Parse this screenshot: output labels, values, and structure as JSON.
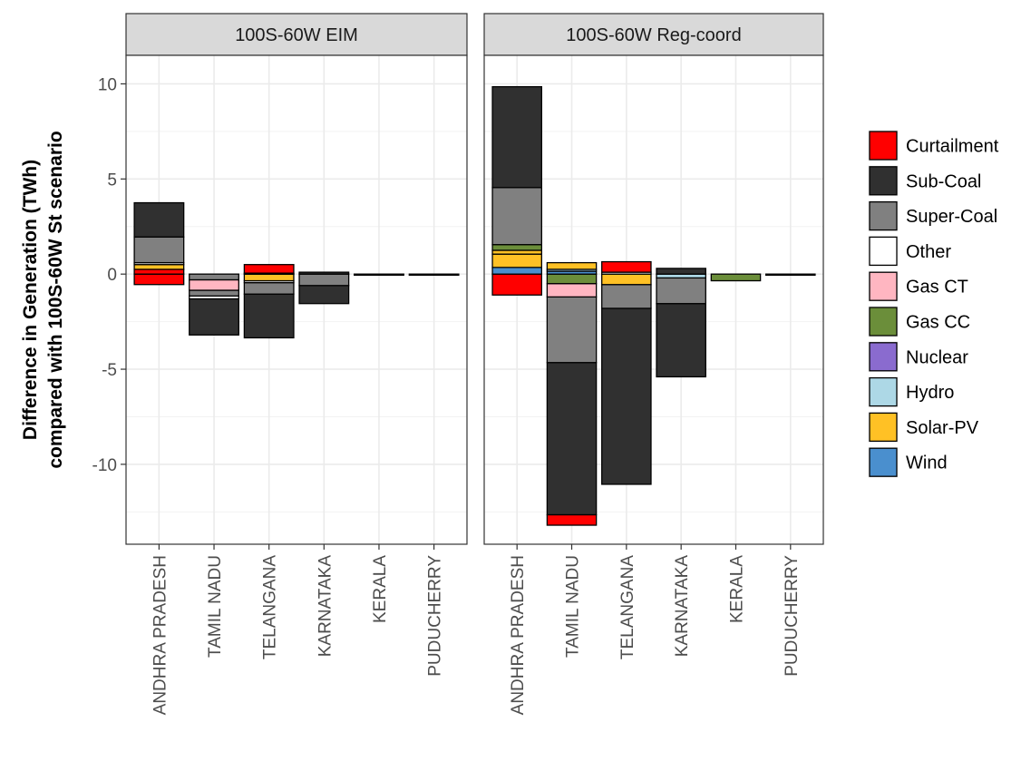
{
  "chart_data": {
    "type": "bar",
    "stacked": true,
    "ylabel": "Difference in Generation (TWh)\ncompared with 100S-60W St scenario",
    "xlabel": "",
    "ylim": [
      -14.2,
      11.5
    ],
    "yticks": [
      10,
      5,
      0,
      -5,
      -10
    ],
    "ytick_labels": [
      "10",
      "5",
      "0",
      "-5",
      "-10"
    ],
    "categories": [
      "ANDHRA PRADESH",
      "TAMIL NADU",
      "TELANGANA",
      "KARNATAKA",
      "KERALA",
      "PUDUCHERRY"
    ],
    "grid": true,
    "legend_position": "right",
    "legend": [
      {
        "name": "Curtailment",
        "color": "#FF0000"
      },
      {
        "name": "Sub-Coal",
        "color": "#303030"
      },
      {
        "name": "Super-Coal",
        "color": "#808080"
      },
      {
        "name": "Other",
        "color": "#FFFFFF"
      },
      {
        "name": "Gas CT",
        "color": "#FFB6C1"
      },
      {
        "name": "Gas CC",
        "color": "#6B8E3A"
      },
      {
        "name": "Nuclear",
        "color": "#8A6BCF"
      },
      {
        "name": "Hydro",
        "color": "#ADD8E6"
      },
      {
        "name": "Solar-PV",
        "color": "#FFC125"
      },
      {
        "name": "Wind",
        "color": "#4A8FCE"
      }
    ],
    "panels": [
      {
        "title": "100S-60W EIM",
        "bars": [
          {
            "category": "ANDHRA PRADESH",
            "segments": [
              {
                "type": "Curtailment",
                "y0": -0.55,
                "y1": 0.0
              },
              {
                "type": "Curtailment",
                "y0": 0.0,
                "y1": 0.25
              },
              {
                "type": "Solar-PV",
                "y0": 0.25,
                "y1": 0.5
              },
              {
                "type": "Other",
                "y0": 0.5,
                "y1": 0.6
              },
              {
                "type": "Super-Coal",
                "y0": 0.6,
                "y1": 1.95
              },
              {
                "type": "Sub-Coal",
                "y0": 1.95,
                "y1": 3.75
              }
            ]
          },
          {
            "category": "TAMIL NADU",
            "segments": [
              {
                "type": "Sub-Coal",
                "y0": -3.2,
                "y1": -1.3
              },
              {
                "type": "Other",
                "y0": -1.3,
                "y1": -1.15
              },
              {
                "type": "Super-Coal",
                "y0": -1.15,
                "y1": -0.85
              },
              {
                "type": "Gas CT",
                "y0": -0.85,
                "y1": -0.3
              },
              {
                "type": "Super-Coal",
                "y0": -0.3,
                "y1": 0.0
              }
            ]
          },
          {
            "category": "TELANGANA",
            "segments": [
              {
                "type": "Sub-Coal",
                "y0": -3.35,
                "y1": -1.05
              },
              {
                "type": "Super-Coal",
                "y0": -1.05,
                "y1": -0.45
              },
              {
                "type": "Other",
                "y0": -0.45,
                "y1": -0.35
              },
              {
                "type": "Solar-PV",
                "y0": -0.35,
                "y1": 0.0
              },
              {
                "type": "Other",
                "y0": 0.0,
                "y1": 0.05
              },
              {
                "type": "Curtailment",
                "y0": 0.05,
                "y1": 0.5
              }
            ]
          },
          {
            "category": "KARNATAKA",
            "segments": [
              {
                "type": "Sub-Coal",
                "y0": -1.55,
                "y1": -0.6
              },
              {
                "type": "Super-Coal",
                "y0": -0.6,
                "y1": 0.0
              },
              {
                "type": "Sub-Coal",
                "y0": 0.0,
                "y1": 0.1
              }
            ]
          },
          {
            "category": "KERALA",
            "segments": [
              {
                "type": "Sub-Coal",
                "y0": -0.05,
                "y1": 0.0
              }
            ]
          },
          {
            "category": "PUDUCHERRY",
            "segments": [
              {
                "type": "Sub-Coal",
                "y0": -0.03,
                "y1": 0.0
              }
            ]
          }
        ]
      },
      {
        "title": "100S-60W Reg-coord",
        "bars": [
          {
            "category": "ANDHRA PRADESH",
            "segments": [
              {
                "type": "Curtailment",
                "y0": -1.1,
                "y1": 0.0
              },
              {
                "type": "Wind",
                "y0": 0.0,
                "y1": 0.35
              },
              {
                "type": "Solar-PV",
                "y0": 0.35,
                "y1": 1.05
              },
              {
                "type": "Solar-PV",
                "y0": 1.05,
                "y1": 1.25
              },
              {
                "type": "Gas CC",
                "y0": 1.25,
                "y1": 1.55
              },
              {
                "type": "Super-Coal",
                "y0": 1.55,
                "y1": 4.55
              },
              {
                "type": "Sub-Coal",
                "y0": 4.55,
                "y1": 9.85
              }
            ]
          },
          {
            "category": "TAMIL NADU",
            "segments": [
              {
                "type": "Curtailment",
                "y0": -13.2,
                "y1": -12.65
              },
              {
                "type": "Sub-Coal",
                "y0": -12.65,
                "y1": -4.65
              },
              {
                "type": "Super-Coal",
                "y0": -4.65,
                "y1": -1.2
              },
              {
                "type": "Gas CT",
                "y0": -1.2,
                "y1": -0.5
              },
              {
                "type": "Gas CC",
                "y0": -0.5,
                "y1": 0.0
              },
              {
                "type": "Wind",
                "y0": 0.0,
                "y1": 0.15
              },
              {
                "type": "Hydro",
                "y0": 0.15,
                "y1": 0.25
              },
              {
                "type": "Solar-PV",
                "y0": 0.25,
                "y1": 0.6
              }
            ]
          },
          {
            "category": "TELANGANA",
            "segments": [
              {
                "type": "Sub-Coal",
                "y0": -11.05,
                "y1": -1.8
              },
              {
                "type": "Super-Coal",
                "y0": -1.8,
                "y1": -0.55
              },
              {
                "type": "Solar-PV",
                "y0": -0.55,
                "y1": 0.0
              },
              {
                "type": "Other",
                "y0": 0.0,
                "y1": 0.1
              },
              {
                "type": "Curtailment",
                "y0": 0.1,
                "y1": 0.65
              }
            ]
          },
          {
            "category": "KARNATAKA",
            "segments": [
              {
                "type": "Sub-Coal",
                "y0": -5.4,
                "y1": -1.55
              },
              {
                "type": "Super-Coal",
                "y0": -1.55,
                "y1": -0.2
              },
              {
                "type": "Hydro",
                "y0": -0.2,
                "y1": 0.0
              },
              {
                "type": "Sub-Coal",
                "y0": 0.0,
                "y1": 0.3
              }
            ]
          },
          {
            "category": "KERALA",
            "segments": [
              {
                "type": "Gas CC",
                "y0": -0.35,
                "y1": 0.0
              }
            ]
          },
          {
            "category": "PUDUCHERRY",
            "segments": [
              {
                "type": "Sub-Coal",
                "y0": -0.03,
                "y1": 0.0
              }
            ]
          }
        ]
      }
    ]
  }
}
